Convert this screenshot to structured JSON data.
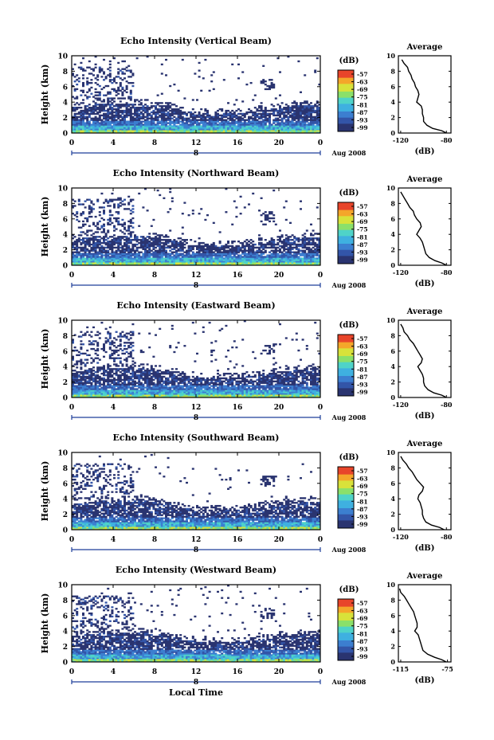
{
  "chart_data": [
    {
      "type": "heatmap",
      "title": "Echo Intensity (Vertical Beam)",
      "ylabel": "Height (km)",
      "xlabel": "",
      "x_ticks": [
        "0",
        "4",
        "8",
        "12",
        "16",
        "20",
        "0"
      ],
      "xlim": [
        0,
        24
      ],
      "y_ticks": [
        "0",
        "2",
        "4",
        "6",
        "8",
        "10"
      ],
      "ylim": [
        0,
        10
      ],
      "date_label": "Aug 2008",
      "day_label": "8",
      "colorbar": {
        "unit": "(dB)",
        "ticks": [
          "-57",
          "-63",
          "-69",
          "-75",
          "-81",
          "-87",
          "-93",
          "-99"
        ]
      },
      "profile": {
        "title": "Average",
        "xlabel": "(dB)",
        "x_ticks": [
          "-120",
          "-80"
        ],
        "xlim": [
          -122,
          -76
        ],
        "y_ticks": [
          "0",
          "2",
          "4",
          "6",
          "8",
          "10"
        ],
        "height_km": [
          0,
          0.3,
          0.6,
          1,
          1.5,
          2,
          2.5,
          3,
          3.5,
          4,
          4.5,
          5,
          5.5,
          6,
          6.5,
          7,
          7.5,
          8,
          8.5,
          9,
          9.5
        ],
        "db": [
          -80,
          -84,
          -92,
          -97,
          -100,
          -100,
          -101,
          -101,
          -102,
          -106,
          -105,
          -104,
          -105,
          -107,
          -108,
          -110,
          -111,
          -113,
          -114,
          -117,
          -119
        ]
      }
    },
    {
      "type": "heatmap",
      "title": "Echo Intensity (Northward Beam)",
      "ylabel": "Height (km)",
      "xlabel": "",
      "x_ticks": [
        "0",
        "4",
        "8",
        "12",
        "16",
        "20",
        "0"
      ],
      "xlim": [
        0,
        24
      ],
      "y_ticks": [
        "0",
        "2",
        "4",
        "6",
        "8",
        "10"
      ],
      "ylim": [
        0,
        10
      ],
      "date_label": "Aug 2008",
      "day_label": "8",
      "colorbar": {
        "unit": "(dB)",
        "ticks": [
          "-57",
          "-63",
          "-69",
          "-75",
          "-81",
          "-87",
          "-93",
          "-99"
        ]
      },
      "profile": {
        "title": "Average",
        "xlabel": "(dB)",
        "x_ticks": [
          "-120",
          "-80"
        ],
        "xlim": [
          -122,
          -76
        ],
        "y_ticks": [
          "0",
          "2",
          "4",
          "6",
          "8",
          "10"
        ],
        "height_km": [
          0,
          0.3,
          0.6,
          1,
          1.5,
          2,
          2.5,
          3,
          3.5,
          4,
          4.5,
          5,
          5.5,
          6,
          6.5,
          7,
          7.5,
          8,
          8.5,
          9,
          9.5
        ],
        "db": [
          -80,
          -84,
          -90,
          -95,
          -98,
          -99,
          -100,
          -101,
          -103,
          -106,
          -104,
          -102,
          -103,
          -106,
          -108,
          -109,
          -112,
          -114,
          -116,
          -118,
          -120
        ]
      }
    },
    {
      "type": "heatmap",
      "title": "Echo Intensity (Eastward Beam)",
      "ylabel": "Height (km)",
      "xlabel": "",
      "x_ticks": [
        "0",
        "4",
        "8",
        "12",
        "16",
        "20",
        "0"
      ],
      "xlim": [
        0,
        24
      ],
      "y_ticks": [
        "0",
        "2",
        "4",
        "6",
        "8",
        "10"
      ],
      "ylim": [
        0,
        10
      ],
      "date_label": "Aug 2008",
      "day_label": "8",
      "colorbar": {
        "unit": "(dB)",
        "ticks": [
          "-57",
          "-63",
          "-69",
          "-75",
          "-81",
          "-87",
          "-93",
          "-99"
        ]
      },
      "profile": {
        "title": "Average",
        "xlabel": "(dB)",
        "x_ticks": [
          "-120",
          "-80"
        ],
        "xlim": [
          -122,
          -76
        ],
        "y_ticks": [
          "0",
          "2",
          "4",
          "6",
          "8",
          "10"
        ],
        "height_km": [
          0,
          0.3,
          0.6,
          1,
          1.5,
          2,
          2.5,
          3,
          3.5,
          4,
          4.5,
          5,
          5.5,
          6,
          6.5,
          7,
          7.5,
          8,
          8.5,
          9,
          9.5
        ],
        "db": [
          -80,
          -84,
          -91,
          -96,
          -99,
          -100,
          -100,
          -101,
          -103,
          -105,
          -102,
          -101,
          -103,
          -105,
          -107,
          -109,
          -112,
          -114,
          -117,
          -118,
          -120
        ]
      }
    },
    {
      "type": "heatmap",
      "title": "Echo Intensity (Southward Beam)",
      "ylabel": "Height (km)",
      "xlabel": "",
      "x_ticks": [
        "0",
        "4",
        "8",
        "12",
        "16",
        "20",
        "0"
      ],
      "xlim": [
        0,
        24
      ],
      "y_ticks": [
        "0",
        "2",
        "4",
        "6",
        "8",
        "10"
      ],
      "ylim": [
        0,
        10
      ],
      "date_label": "Aug 2008",
      "day_label": "8",
      "colorbar": {
        "unit": "(dB)",
        "ticks": [
          "-57",
          "-63",
          "-69",
          "-75",
          "-81",
          "-87",
          "-93",
          "-99"
        ]
      },
      "profile": {
        "title": "Average",
        "xlabel": "(dB)",
        "x_ticks": [
          "-120",
          "-80"
        ],
        "xlim": [
          -122,
          -76
        ],
        "y_ticks": [
          "0",
          "2",
          "4",
          "6",
          "8",
          "10"
        ],
        "height_km": [
          0,
          0.3,
          0.6,
          1,
          1.5,
          2,
          2.5,
          3,
          3.5,
          4,
          4.5,
          5,
          5.5,
          6,
          6.5,
          7,
          7.5,
          8,
          8.5,
          9,
          9.5
        ],
        "db": [
          -82,
          -86,
          -93,
          -98,
          -100,
          -101,
          -101,
          -102,
          -103,
          -105,
          -104,
          -101,
          -100,
          -103,
          -106,
          -108,
          -110,
          -113,
          -115,
          -118,
          -120
        ]
      }
    },
    {
      "type": "heatmap",
      "title": "Echo Intensity (Westward Beam)",
      "ylabel": "Height (km)",
      "xlabel": "Local Time",
      "x_ticks": [
        "0",
        "4",
        "8",
        "12",
        "16",
        "20",
        "0"
      ],
      "xlim": [
        0,
        24
      ],
      "y_ticks": [
        "0",
        "2",
        "4",
        "6",
        "8",
        "10"
      ],
      "ylim": [
        0,
        10
      ],
      "date_label": "Aug 2008",
      "day_label": "8",
      "colorbar": {
        "unit": "(dB)",
        "ticks": [
          "-57",
          "-63",
          "-69",
          "-75",
          "-81",
          "-87",
          "-93",
          "-99"
        ]
      },
      "profile": {
        "title": "Average",
        "xlabel": "(dB)",
        "x_ticks": [
          "-115",
          "-75"
        ],
        "xlim": [
          -117,
          -72
        ],
        "y_ticks": [
          "0",
          "2",
          "4",
          "6",
          "8",
          "10"
        ],
        "height_km": [
          0,
          0.3,
          0.6,
          1,
          1.5,
          2,
          2.5,
          3,
          3.5,
          4,
          4.5,
          5,
          5.5,
          6,
          6.5,
          7,
          7.5,
          8,
          8.5,
          9,
          9.5
        ],
        "db": [
          -76,
          -80,
          -86,
          -92,
          -96,
          -97,
          -98,
          -99,
          -100,
          -103,
          -101,
          -101,
          -102,
          -103,
          -104,
          -106,
          -108,
          -110,
          -112,
          -115,
          -116
        ]
      }
    }
  ],
  "colors": {
    "colormap": [
      "#2a3470",
      "#3355a8",
      "#3c7fd0",
      "#3fb0e0",
      "#4fd3c8",
      "#8be06a",
      "#d8e23a",
      "#f4a62a",
      "#e8452a"
    ],
    "axis": "#000000",
    "time_bar": "#1f3f9a"
  }
}
